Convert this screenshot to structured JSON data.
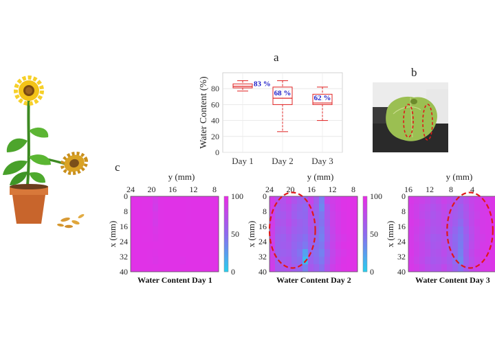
{
  "panels": {
    "a": "a",
    "b": "b",
    "c": "c"
  },
  "colors": {
    "box": "#e02020",
    "annotation": "#2020c8",
    "cmap_low": "#22d3ee",
    "cmap_mid": "#8a6cf0",
    "cmap_high": "#e62ee6",
    "ellipse": "#e01818"
  },
  "icons": [
    "sunflower-plant-illustration",
    "leaf-photo"
  ],
  "chart_data": [
    {
      "type": "box",
      "ylabel": "Water Content  (%)",
      "categories": [
        "Day 1",
        "Day 2",
        "Day 3"
      ],
      "ylim": [
        0,
        100
      ],
      "yticks": [
        0,
        20,
        40,
        60,
        80
      ],
      "grid": true,
      "boxes": [
        {
          "min": 77,
          "q1": 81,
          "median": 83,
          "q3": 86,
          "max": 90,
          "label": "83 %"
        },
        {
          "min": 26,
          "q1": 60,
          "median": 68,
          "q3": 82,
          "max": 90,
          "label": "68 %"
        },
        {
          "min": 40,
          "q1": 60,
          "median": 62,
          "q3": 73,
          "max": 82,
          "label": "62 %"
        }
      ]
    },
    {
      "type": "heatmap",
      "title": "Water Content Day 1",
      "xlabel": "y (mm)",
      "ylabel": "x (mm)",
      "x_ticks": [
        "24",
        "20",
        "16",
        "12",
        "8"
      ],
      "y_ticks": [
        "0",
        "8",
        "16",
        "24",
        "32",
        "40"
      ],
      "colorbar_ticks": [
        "100",
        "50",
        "0"
      ],
      "colorbar_range": [
        0,
        100
      ],
      "grid": [
        [
          97,
          97,
          96,
          96,
          90,
          96,
          97,
          97,
          97,
          97,
          96,
          97,
          97,
          97,
          97,
          97
        ],
        [
          97,
          97,
          96,
          96,
          88,
          96,
          97,
          97,
          97,
          97,
          96,
          97,
          97,
          97,
          97,
          97
        ],
        [
          97,
          97,
          97,
          96,
          92,
          96,
          97,
          97,
          97,
          97,
          96,
          97,
          97,
          97,
          97,
          97
        ],
        [
          97,
          97,
          96,
          96,
          90,
          96,
          97,
          97,
          97,
          97,
          96,
          97,
          97,
          97,
          97,
          97
        ],
        [
          97,
          97,
          97,
          96,
          93,
          96,
          97,
          97,
          97,
          97,
          97,
          97,
          97,
          97,
          97,
          97
        ],
        [
          97,
          97,
          96,
          96,
          94,
          96,
          97,
          97,
          97,
          97,
          96,
          97,
          97,
          97,
          97,
          97
        ],
        [
          97,
          97,
          97,
          97,
          96,
          96,
          97,
          97,
          97,
          97,
          97,
          97,
          97,
          97,
          97,
          97
        ],
        [
          97,
          97,
          97,
          96,
          95,
          97,
          97,
          97,
          97,
          97,
          97,
          97,
          97,
          97,
          97,
          97
        ],
        [
          97,
          97,
          97,
          96,
          94,
          96,
          97,
          97,
          97,
          95,
          97,
          97,
          97,
          96,
          97,
          97
        ],
        [
          97,
          97,
          97,
          97,
          96,
          97,
          97,
          97,
          97,
          97,
          97,
          97,
          97,
          97,
          97,
          97
        ]
      ]
    },
    {
      "type": "heatmap",
      "title": "Water Content Day 2",
      "xlabel": "y (mm)",
      "ylabel": "x (mm)",
      "x_ticks": [
        "24",
        "20",
        "16",
        "12",
        "8"
      ],
      "y_ticks": [
        "0",
        "8",
        "16",
        "24",
        "32",
        "40"
      ],
      "colorbar_ticks": [
        "100",
        "50",
        "0"
      ],
      "colorbar_range": [
        0,
        100
      ],
      "grid": [
        [
          90,
          74,
          72,
          80,
          70,
          62,
          58,
          82,
          64,
          40,
          80,
          88,
          92,
          95,
          96,
          96
        ],
        [
          88,
          66,
          70,
          74,
          64,
          58,
          52,
          76,
          60,
          36,
          70,
          86,
          92,
          95,
          96,
          96
        ],
        [
          86,
          64,
          66,
          72,
          62,
          56,
          54,
          72,
          56,
          44,
          68,
          84,
          90,
          94,
          96,
          96
        ],
        [
          88,
          70,
          68,
          74,
          66,
          60,
          56,
          70,
          58,
          46,
          66,
          84,
          90,
          94,
          96,
          96
        ],
        [
          86,
          66,
          64,
          70,
          62,
          58,
          54,
          66,
          56,
          42,
          64,
          82,
          90,
          94,
          96,
          96
        ],
        [
          84,
          62,
          60,
          66,
          58,
          54,
          48,
          62,
          52,
          40,
          62,
          80,
          88,
          92,
          95,
          96
        ],
        [
          86,
          60,
          62,
          64,
          56,
          50,
          44,
          58,
          50,
          44,
          66,
          82,
          90,
          94,
          96,
          96
        ],
        [
          84,
          58,
          60,
          62,
          54,
          46,
          24,
          56,
          48,
          40,
          60,
          80,
          88,
          92,
          95,
          96
        ],
        [
          86,
          62,
          64,
          66,
          56,
          50,
          12,
          60,
          52,
          44,
          64,
          82,
          90,
          94,
          96,
          96
        ],
        [
          88,
          66,
          68,
          70,
          62,
          58,
          40,
          66,
          60,
          50,
          70,
          86,
          92,
          95,
          96,
          96
        ]
      ]
    },
    {
      "type": "heatmap",
      "title": "Water Content Day 3",
      "xlabel": "y (mm)",
      "ylabel": "x (mm)",
      "x_ticks": [
        "16",
        "12",
        "8",
        "4"
      ],
      "y_ticks": [
        "0",
        "8",
        "16",
        "24",
        "32",
        "40"
      ],
      "grid": [
        [
          92,
          88,
          84,
          80,
          74,
          78,
          84,
          80,
          72,
          66,
          74,
          82,
          86,
          90,
          92,
          94
        ],
        [
          90,
          86,
          80,
          76,
          70,
          74,
          80,
          74,
          66,
          60,
          70,
          80,
          86,
          90,
          92,
          94
        ],
        [
          90,
          86,
          78,
          74,
          68,
          72,
          78,
          72,
          64,
          58,
          68,
          78,
          84,
          90,
          92,
          94
        ],
        [
          92,
          88,
          82,
          76,
          70,
          72,
          78,
          70,
          62,
          52,
          66,
          78,
          86,
          90,
          92,
          94
        ],
        [
          90,
          86,
          80,
          74,
          68,
          70,
          74,
          66,
          56,
          46,
          62,
          76,
          84,
          90,
          92,
          94
        ],
        [
          90,
          84,
          78,
          72,
          64,
          66,
          72,
          62,
          52,
          44,
          58,
          74,
          84,
          88,
          92,
          94
        ],
        [
          90,
          86,
          80,
          74,
          66,
          68,
          74,
          64,
          54,
          42,
          60,
          76,
          84,
          90,
          92,
          94
        ],
        [
          92,
          86,
          80,
          76,
          68,
          70,
          76,
          68,
          56,
          40,
          62,
          78,
          86,
          90,
          92,
          94
        ],
        [
          90,
          84,
          78,
          72,
          66,
          68,
          72,
          66,
          52,
          36,
          60,
          76,
          84,
          90,
          92,
          94
        ],
        [
          92,
          88,
          82,
          76,
          70,
          72,
          78,
          70,
          60,
          48,
          66,
          80,
          86,
          90,
          92,
          94
        ]
      ]
    }
  ]
}
